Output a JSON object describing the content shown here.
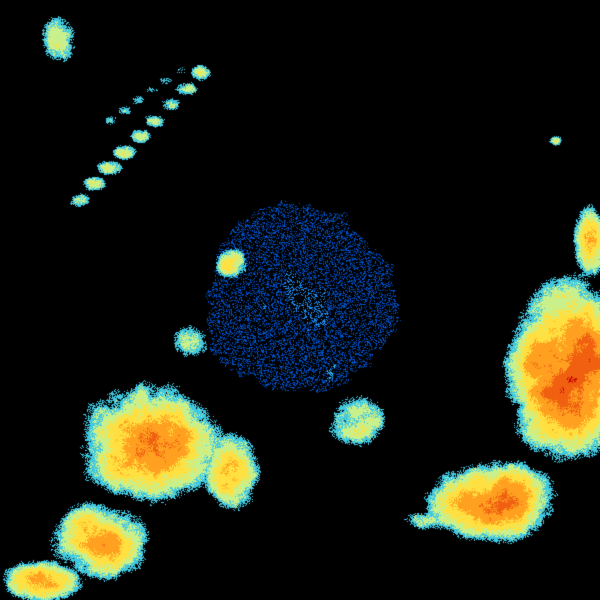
{
  "radar": {
    "type": "weather-radar-reflectivity",
    "background_color": "#000000",
    "color_scale": [
      "#0050c8",
      "#1e90ff",
      "#40c8e0",
      "#c8f08c",
      "#ffe040",
      "#ffa020",
      "#f06010",
      "#c80000"
    ],
    "site_marker_color": "#000000"
  }
}
